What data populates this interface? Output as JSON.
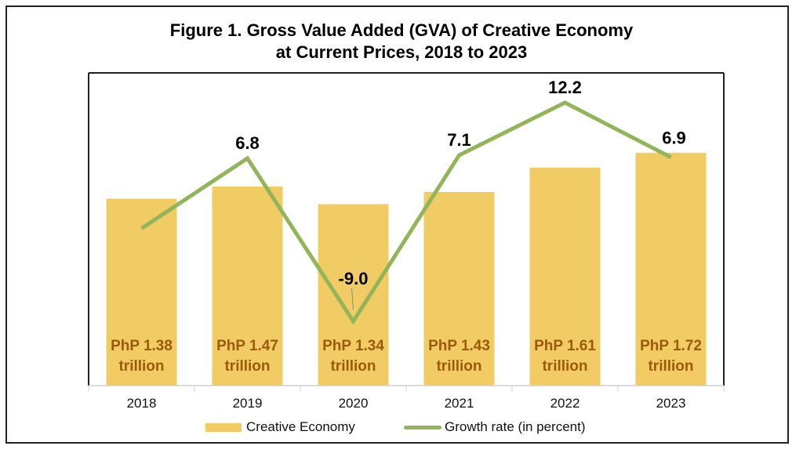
{
  "chart_data": {
    "type": "bar+line",
    "title_lines": [
      "Figure 1. Gross Value Added (GVA) of Creative Economy",
      "at Current Prices, 2018 to 2023"
    ],
    "categories": [
      "2018",
      "2019",
      "2020",
      "2021",
      "2022",
      "2023"
    ],
    "series": [
      {
        "name": "Creative Economy",
        "type": "bar",
        "values": [
          1.38,
          1.47,
          1.34,
          1.43,
          1.61,
          1.72
        ],
        "labels": [
          "PhP 1.38",
          "PhP 1.47",
          "PhP 1.34",
          "PhP 1.43",
          "PhP 1.61",
          "PhP 1.72"
        ],
        "label_unit": "trillion",
        "color": "#f1cc64",
        "label_color": "#9c5a0c"
      },
      {
        "name": "Growth rate (in percent)",
        "type": "line",
        "values": [
          0,
          6.8,
          -9.0,
          7.1,
          12.2,
          6.9
        ],
        "labels": [
          "",
          "6.8",
          "-9.0",
          "7.1",
          "12.2",
          "6.9"
        ],
        "color": "#92b55a"
      }
    ],
    "bar_ylim": [
      0,
      2.0
    ],
    "grid": false,
    "legend_position": "bottom"
  }
}
